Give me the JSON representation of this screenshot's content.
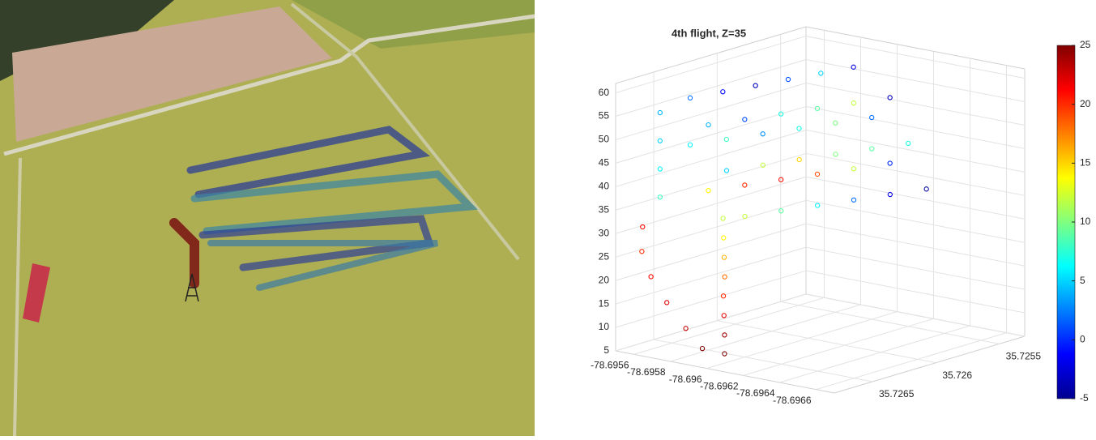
{
  "chart_data": {
    "type": "scatter3d",
    "title": "4th flight, Z=35",
    "x": [
      -78.69592,
      -78.69585,
      -78.69576,
      -78.69568,
      -78.69563,
      -78.69562,
      -78.696,
      -78.696,
      -78.69599,
      -78.69598,
      -78.69598,
      -78.69597,
      -78.69596,
      -78.69595,
      -78.69566,
      -78.69566,
      -78.69566,
      -78.69566,
      -78.6957,
      -78.69574,
      -78.69578,
      -78.69582,
      -78.69586,
      -78.6959,
      -78.6958,
      -78.69586,
      -78.69592,
      -78.69598,
      -78.69604,
      -78.6961,
      -78.6957,
      -78.69576,
      -78.69582,
      -78.69588,
      -78.69594,
      -78.696,
      -78.6959,
      -78.69596,
      -78.69602,
      -78.69608,
      -78.69614,
      -78.6962,
      -78.6958,
      -78.69586,
      -78.69592,
      -78.69598,
      -78.69604,
      -78.6961,
      -78.696,
      -78.69606,
      -78.69612,
      -78.69618,
      -78.69624,
      -78.6963
    ],
    "y": [
      35.72672,
      35.72675,
      35.72677,
      35.72678,
      35.72678,
      35.72676,
      35.72666,
      35.72666,
      35.72665,
      35.72664,
      35.72663,
      35.72662,
      35.72661,
      35.7266,
      35.72668,
      35.72668,
      35.72668,
      35.72668,
      35.7265,
      35.7263,
      35.7261,
      35.7259,
      35.7257,
      35.7255,
      35.7265,
      35.7263,
      35.7261,
      35.7259,
      35.7257,
      35.7255,
      35.7265,
      35.7263,
      35.7261,
      35.7259,
      35.7257,
      35.7255,
      35.7265,
      35.7263,
      35.7261,
      35.7259,
      35.7257,
      35.7255,
      35.7265,
      35.7263,
      35.7261,
      35.7259,
      35.7257,
      35.7255,
      35.7265,
      35.7263,
      35.7261,
      35.7259,
      35.7257,
      35.7255
    ],
    "z": [
      8,
      12,
      17,
      22,
      27,
      32,
      7,
      11,
      15,
      19,
      23,
      27,
      31,
      35,
      38,
      44,
      50,
      56,
      58,
      58,
      58,
      58,
      58,
      58,
      53,
      53,
      53,
      53,
      53,
      53,
      48,
      48,
      48,
      48,
      48,
      48,
      44,
      44,
      44,
      44,
      44,
      44,
      39,
      39,
      39,
      39,
      39,
      39,
      35,
      35,
      35,
      35,
      35,
      35
    ],
    "c": [
      25,
      23,
      22,
      21,
      20,
      21,
      25,
      24,
      22,
      20,
      18,
      16,
      14,
      12,
      8,
      6,
      5,
      4,
      2,
      -1,
      -3,
      1,
      5,
      -2,
      4,
      1,
      7,
      9,
      12,
      -3,
      6,
      8,
      3,
      7,
      10,
      2,
      5,
      12,
      15,
      10,
      9,
      7,
      14,
      20,
      21,
      19,
      12,
      0,
      12,
      9,
      6,
      2,
      -2,
      -4
    ],
    "xlim": [
      -78.6955,
      -78.6967
    ],
    "ylim": [
      35.7268,
      35.7253
    ],
    "zlim": [
      5,
      62
    ],
    "clim": [
      -5,
      25
    ],
    "xticks": [
      -78.6956,
      -78.6958,
      -78.696,
      -78.6962,
      -78.6964,
      -78.6966
    ],
    "yticks": [
      35.7265,
      35.726,
      35.7255
    ],
    "zticks": [
      5,
      10,
      15,
      20,
      25,
      30,
      35,
      40,
      45,
      50,
      55,
      60
    ],
    "cticks": [
      -5,
      0,
      5,
      10,
      15,
      20,
      25
    ],
    "colormap": "jet",
    "grid": true
  }
}
